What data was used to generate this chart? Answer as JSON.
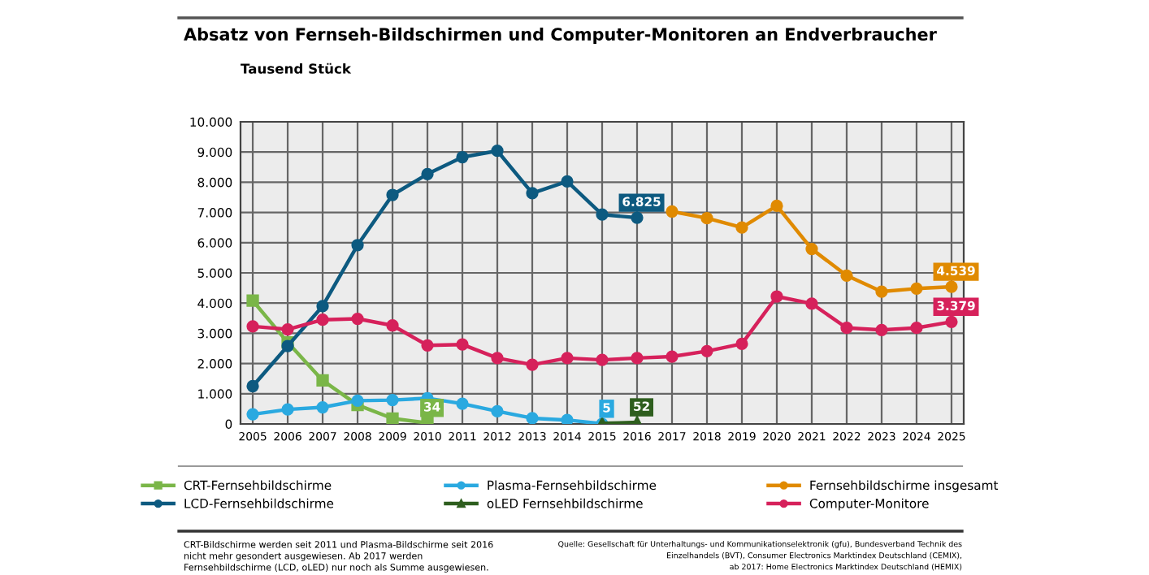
{
  "chart_data": {
    "type": "line",
    "title": "Absatz von Fernseh-Bildschirmen und Computer-Monitoren an Endverbraucher",
    "ylabel": "Tausend Stück",
    "categories": [
      "2005",
      "2006",
      "2007",
      "2008",
      "2009",
      "2010",
      "2011",
      "2012",
      "2013",
      "2014",
      "2015",
      "2016",
      "2017",
      "2018",
      "2019",
      "2020",
      "2021",
      "2022",
      "2023",
      "2024",
      "2025"
    ],
    "series": [
      {
        "name": "CRT-Fernsehbildschirme",
        "color": "#7ab648",
        "marker": "square",
        "values": [
          4080,
          2700,
          1440,
          630,
          180,
          34,
          null,
          null,
          null,
          null,
          null,
          null,
          null,
          null,
          null,
          null,
          null,
          null,
          null,
          null,
          null
        ],
        "value_labels": [
          null,
          null,
          null,
          null,
          null,
          "34",
          null,
          null,
          null,
          null,
          null,
          null,
          null,
          null,
          null,
          null,
          null,
          null,
          null,
          null,
          null
        ]
      },
      {
        "name": "LCD-Fernsehbildschirme",
        "color": "#0d5a80",
        "marker": "circle",
        "values": [
          1250,
          2580,
          3900,
          5920,
          7580,
          8270,
          8830,
          9040,
          7640,
          8030,
          6930,
          6825,
          null,
          null,
          null,
          null,
          null,
          null,
          null,
          null,
          null
        ],
        "value_labels": [
          null,
          null,
          null,
          null,
          null,
          null,
          null,
          null,
          null,
          null,
          null,
          "6.825",
          null,
          null,
          null,
          null,
          null,
          null,
          null,
          null,
          null
        ]
      },
      {
        "name": "Plasma-Fernsehbildschirme",
        "color": "#2aa9e0",
        "marker": "circle",
        "values": [
          320,
          480,
          550,
          770,
          790,
          850,
          670,
          420,
          190,
          130,
          5,
          null,
          null,
          null,
          null,
          null,
          null,
          null,
          null,
          null,
          null
        ],
        "value_labels": [
          null,
          null,
          null,
          null,
          null,
          null,
          null,
          null,
          null,
          null,
          "5",
          null,
          null,
          null,
          null,
          null,
          null,
          null,
          null,
          null,
          null
        ]
      },
      {
        "name": "oLED Fernsehbildschirme",
        "color": "#2e5e1e",
        "marker": "triangle",
        "values": [
          null,
          null,
          null,
          null,
          null,
          null,
          null,
          null,
          null,
          null,
          20,
          52,
          null,
          null,
          null,
          null,
          null,
          null,
          null,
          null,
          null
        ],
        "value_labels": [
          null,
          null,
          null,
          null,
          null,
          null,
          null,
          null,
          null,
          null,
          null,
          "52",
          null,
          null,
          null,
          null,
          null,
          null,
          null,
          null,
          null
        ]
      },
      {
        "name": "Fernsehbildschirme insgesamt",
        "color": "#e08a00",
        "marker": "circle",
        "values": [
          null,
          null,
          null,
          null,
          null,
          null,
          null,
          null,
          null,
          null,
          null,
          null,
          7030,
          6810,
          6500,
          7220,
          5790,
          4910,
          4380,
          4480,
          4539
        ],
        "value_labels": [
          null,
          null,
          null,
          null,
          null,
          null,
          null,
          null,
          null,
          null,
          null,
          null,
          null,
          null,
          null,
          null,
          null,
          null,
          null,
          null,
          "4.539"
        ]
      },
      {
        "name": "Computer-Monitore",
        "color": "#d6215b",
        "marker": "circle",
        "values": [
          3230,
          3130,
          3450,
          3480,
          3260,
          2600,
          2630,
          2180,
          1960,
          2180,
          2120,
          2180,
          2230,
          2410,
          2650,
          4220,
          3980,
          3180,
          3110,
          3180,
          3379
        ],
        "value_labels": [
          null,
          null,
          null,
          null,
          null,
          null,
          null,
          null,
          null,
          null,
          null,
          null,
          null,
          null,
          null,
          null,
          null,
          null,
          null,
          null,
          "3.379"
        ]
      }
    ],
    "ylim": [
      0,
      10000
    ],
    "yticks": [
      0,
      {
        "value": 1000,
        "label": "1.000"
      },
      {
        "value": 2000,
        "label": "2.000"
      },
      {
        "value": 3000,
        "label": "3.000"
      },
      {
        "value": 4000,
        "label": "4.000"
      },
      {
        "value": 5000,
        "label": "5.000"
      },
      {
        "value": 6000,
        "label": "6.000"
      },
      {
        "value": 7000,
        "label": "7.000"
      },
      {
        "value": 8000,
        "label": "8.000"
      },
      {
        "value": 9000,
        "label": "9.000"
      },
      {
        "value": 10000,
        "label": "10.000"
      }
    ],
    "grid": true,
    "legend": "bottom",
    "line_style": "solid",
    "annotations": [
      "CRT-Bildschirme werden seit 2011 und Plasma-Bildschirme seit 2016",
      "nicht mehr gesondert ausgewiesen. Ab 2017 werden",
      "Fernsehbildschirme (LCD, oLED) nur noch als Summe ausgewiesen.",
      "Quelle: Gesellschaft für Unterhaltungs- und Kommunikationselektronik (gfu), Bundesverband Technik des",
      "Einzelhandels (BVT), Consumer Electronics Marktindex Deutschland (CEMIX),",
      "ab 2017: Home Electronics Marktindex Deutschland (HEMIX)"
    ]
  }
}
